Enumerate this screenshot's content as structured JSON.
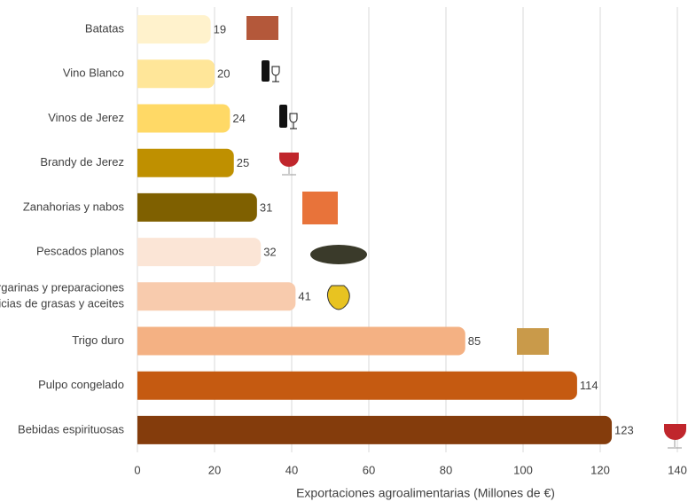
{
  "chart_data": {
    "type": "bar",
    "orientation": "horizontal",
    "x_label": "Exportaciones agroalimentarias (Millones de €)",
    "categories": [
      "Batatas",
      "Vino Blanco",
      "Vinos de Jerez",
      "Brandy de Jerez",
      "Zanahorias y nabos",
      "Pescados planos",
      "Margarinas y preparaciones\nalimenticias de grasas y aceites",
      "Trigo duro",
      "Pulpo congelado",
      "Bebidas espirituosas"
    ],
    "values": [
      19,
      20,
      24,
      25,
      31,
      32,
      41,
      85,
      114,
      123
    ],
    "colors": [
      "#fff2cc",
      "#ffe699",
      "#ffd966",
      "#bf9000",
      "#7f6000",
      "#fbe5d6",
      "#f8cbad",
      "#f4b183",
      "#c55a11",
      "#843c0c"
    ],
    "xlim": [
      0,
      140
    ],
    "xticks": [
      0,
      20,
      40,
      60,
      80,
      100,
      120,
      140
    ],
    "grid": true
  }
}
